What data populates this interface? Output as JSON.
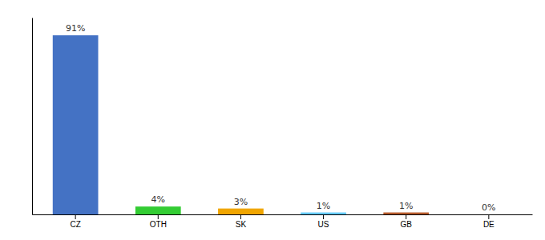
{
  "chart_data": {
    "type": "bar",
    "categories": [
      "CZ",
      "OTH",
      "SK",
      "US",
      "GB",
      "DE"
    ],
    "values": [
      91,
      4,
      3,
      1,
      1,
      0
    ],
    "value_labels": [
      "91%",
      "4%",
      "3%",
      "1%",
      "1%",
      "0%"
    ],
    "colors": [
      "#4472c4",
      "#33cc33",
      "#f0a500",
      "#66ccff",
      "#b85c2c",
      "#b85c2c"
    ],
    "ylim": [
      0,
      100
    ],
    "data_labels": true,
    "tick_labels": "x"
  }
}
